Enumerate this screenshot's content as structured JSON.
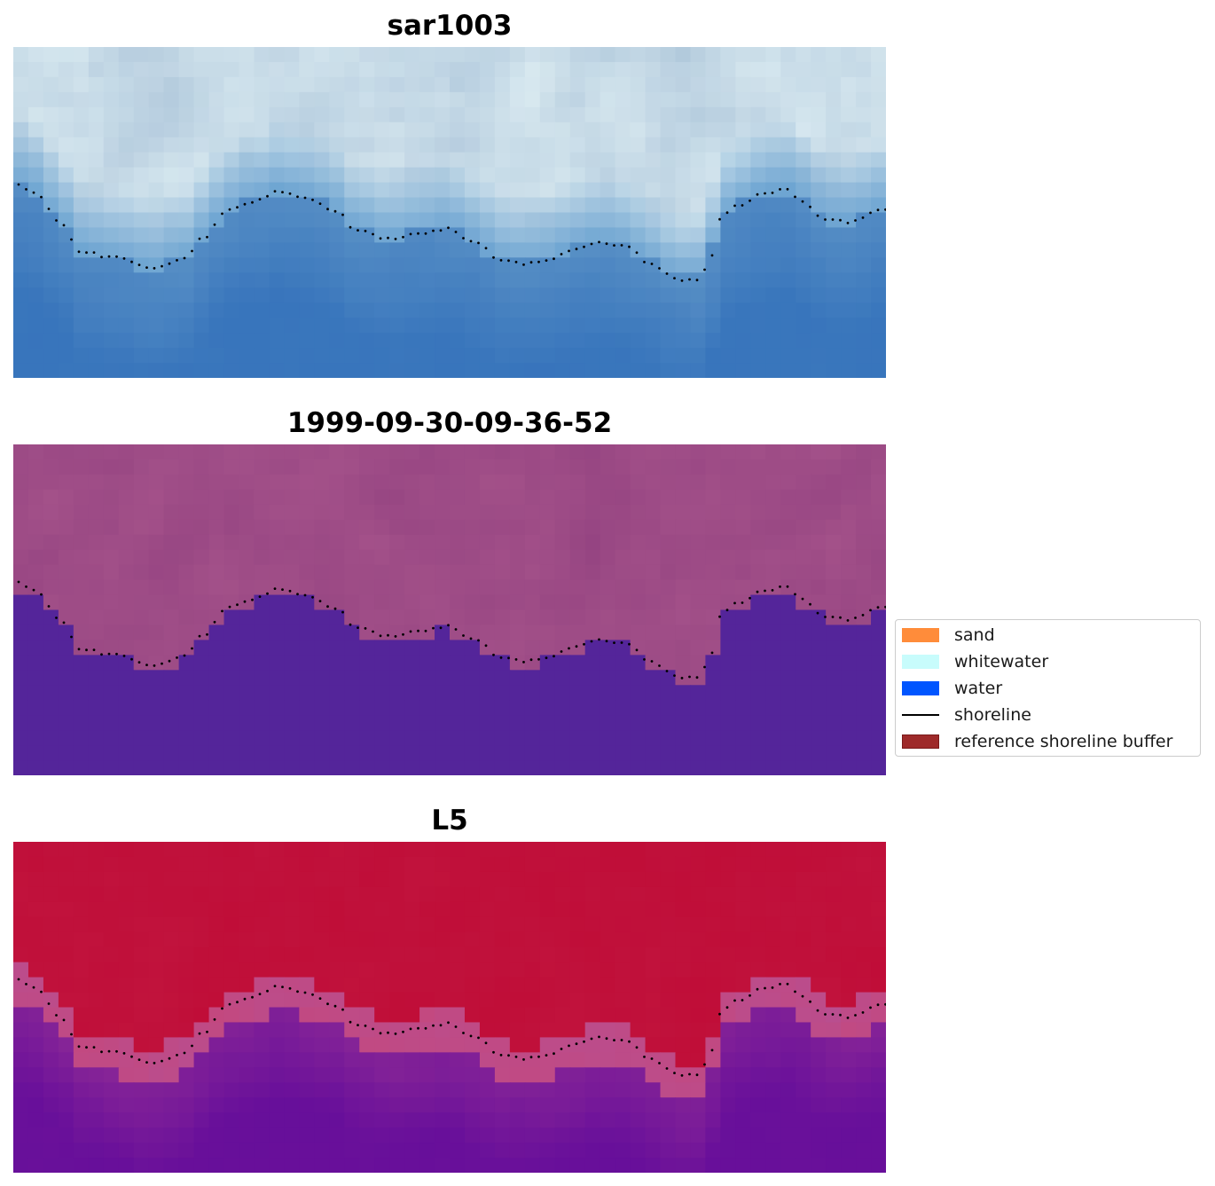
{
  "panels": [
    {
      "title": "sar1003",
      "palette": "rgb"
    },
    {
      "title": "1999-09-30-09-36-52",
      "palette": "classified"
    },
    {
      "title": "L5",
      "palette": "index"
    }
  ],
  "legend": {
    "items": [
      {
        "label": "sand",
        "color": "#ff8c3a",
        "kind": "patch"
      },
      {
        "label": "whitewater",
        "color": "#c8fcfc",
        "kind": "patch"
      },
      {
        "label": "water",
        "color": "#0055ff",
        "kind": "patch"
      },
      {
        "label": "shoreline",
        "color": "#000000",
        "kind": "line"
      },
      {
        "label": "reference shoreline buffer",
        "color": "#9e2a2a",
        "kind": "patch"
      }
    ]
  },
  "colors": {
    "water_blue": "#3b78bd",
    "whitewater_blue": "#dbeef4",
    "classified_water": "#54259a",
    "classified_land": "#a9568c",
    "index_land": "#bf0a35",
    "index_water": "#6b119a",
    "shoreline_dots": "#000000"
  }
}
